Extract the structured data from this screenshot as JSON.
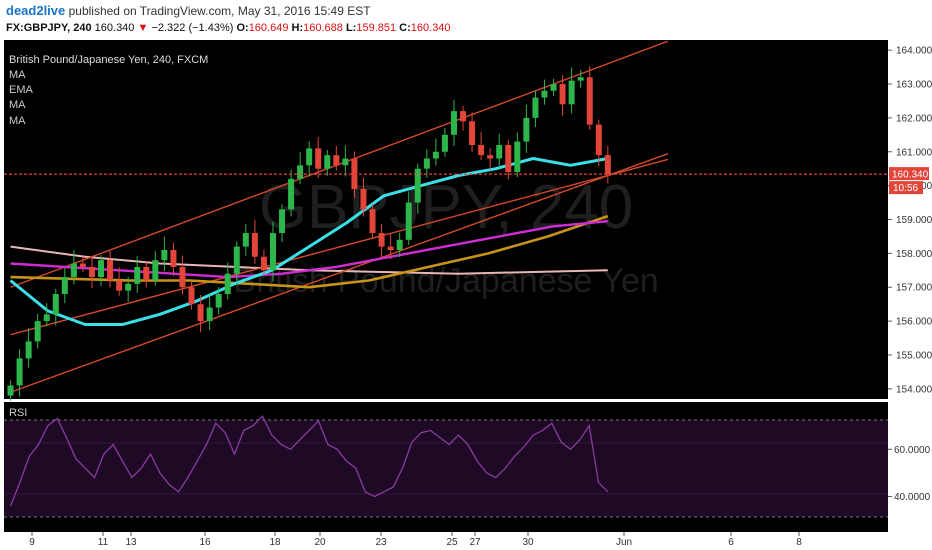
{
  "header": {
    "username": "dead2live",
    "published_text": "published on TradingView.com, May 31, 2016 15:49 EST",
    "symbol": "FX:GBPJPY, 240",
    "last": "160.340",
    "down_arrow": "▼",
    "change": "−2.322 (−1.43%)",
    "o_label": "O:",
    "o_value": "160.649",
    "h_label": "H:",
    "h_value": "160.688",
    "l_label": "L:",
    "l_value": "159.851",
    "c_label": "C:",
    "c_value": "160.340"
  },
  "legend": {
    "title": "British Pound/Japanese Yen, 240, FXCM",
    "items": [
      "MA",
      "EMA",
      "MA",
      "MA"
    ]
  },
  "watermark": {
    "symbol": "GBPJPY, 240",
    "name": "British Pound/Japanese Yen"
  },
  "price_tag": {
    "value": "160.340",
    "countdown": "10:56"
  },
  "rsi_label": "RSI",
  "colors": {
    "background": "#000000",
    "bull": "#2db64b",
    "bear": "#e2453a",
    "ema_cyan": "#3ae0e8",
    "ma_magenta": "#d02cd4",
    "ma_orange": "#c89418",
    "ma_pink": "#e8b8b8",
    "channel": "#d4492a",
    "rsi_line": "#8a3aa0",
    "rsi_band": "#1e0a24"
  },
  "chart_data": [
    {
      "type": "line",
      "name": "price",
      "x_ticks": [
        "9",
        "11",
        "13",
        "16",
        "18",
        "20",
        "23",
        "25",
        "27",
        "30",
        "Jun",
        "6",
        "8"
      ],
      "y_ticks": [
        "154.000",
        "155.000",
        "156.000",
        "157.000",
        "158.000",
        "159.000",
        "160.000",
        "161.000",
        "162.000",
        "163.000",
        "164.000"
      ],
      "ylim": [
        153.7,
        164.3
      ],
      "grid": false,
      "legend_position": "top-left",
      "series": [
        {
          "name": "GBPJPY",
          "style": "candlestick",
          "values": [
            154.1,
            154.9,
            155.4,
            156.0,
            156.2,
            156.8,
            157.3,
            157.7,
            157.6,
            157.3,
            157.8,
            157.2,
            156.9,
            157.1,
            157.6,
            157.2,
            157.8,
            158.1,
            157.6,
            157.0,
            156.5,
            156.0,
            156.4,
            156.8,
            157.4,
            158.2,
            158.6,
            157.9,
            157.5,
            158.6,
            159.3,
            160.2,
            160.6,
            161.1,
            160.5,
            160.9,
            160.6,
            160.8,
            159.9,
            159.3,
            158.6,
            158.2,
            158.1,
            158.4,
            159.5,
            160.5,
            160.8,
            161.0,
            161.5,
            162.2,
            161.9,
            161.2,
            160.9,
            160.8,
            161.2,
            160.4,
            161.3,
            162.0,
            162.6,
            162.8,
            163.0,
            162.4,
            163.1,
            163.2,
            161.8,
            160.9,
            160.34
          ]
        },
        {
          "name": "EMA",
          "values": [
            157.2,
            156.3,
            155.9,
            155.9,
            156.2,
            156.6,
            157.1,
            157.5,
            158.2,
            158.9,
            159.7,
            160.0,
            160.3,
            160.5,
            160.8,
            160.6,
            160.8
          ]
        },
        {
          "name": "MA",
          "values": [
            157.7,
            157.6,
            157.5,
            157.4,
            157.3,
            157.4,
            157.6,
            157.9,
            158.2,
            158.5,
            158.8,
            158.95
          ]
        },
        {
          "name": "MA",
          "values": [
            157.3,
            157.25,
            157.2,
            157.2,
            157.1,
            157.0,
            157.2,
            157.6,
            158.0,
            158.5,
            159.1
          ]
        },
        {
          "name": "MA",
          "values": [
            158.2,
            157.9,
            157.7,
            157.6,
            157.5,
            157.45,
            157.4,
            157.45,
            157.5
          ]
        }
      ],
      "channel": {
        "upper": [
          [
            0,
            157.0
          ],
          [
            66,
            163.6
          ]
        ],
        "lower": [
          [
            0,
            153.9
          ],
          [
            66,
            160.3
          ]
        ],
        "extension": [
          [
            0,
            155.6
          ],
          [
            66,
            160.3
          ]
        ]
      }
    },
    {
      "type": "line",
      "name": "RSI",
      "y_ticks": [
        "40.0000",
        "60.0000"
      ],
      "ylim": [
        25,
        80
      ],
      "series": [
        {
          "name": "RSI",
          "values": [
            36,
            46,
            57,
            62,
            70,
            73,
            65,
            56,
            52,
            48,
            58,
            62,
            55,
            48,
            52,
            58,
            50,
            45,
            42,
            48,
            55,
            62,
            71,
            67,
            58,
            68,
            70,
            74,
            66,
            62,
            60,
            64,
            68,
            72,
            62,
            60,
            55,
            52,
            42,
            40,
            42,
            44,
            52,
            63,
            67,
            68,
            65,
            62,
            66,
            62,
            55,
            50,
            48,
            52,
            57,
            61,
            66,
            68,
            71,
            63,
            60,
            64,
            70,
            46,
            42
          ]
        }
      ]
    }
  ]
}
